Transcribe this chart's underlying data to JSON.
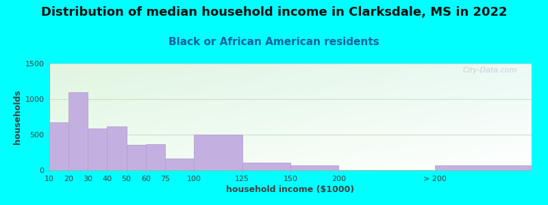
{
  "title": "Distribution of median household income in Clarksdale, MS in 2022",
  "subtitle": "Black or African American residents",
  "xlabel": "household income ($1000)",
  "ylabel": "households",
  "background_outer": "#00FFFF",
  "bar_color": "#C4B0E0",
  "bar_edge_color": "#B0A0D0",
  "watermark": "City-Data.com",
  "bin_edges": [
    0,
    10,
    20,
    30,
    40,
    50,
    60,
    75,
    100,
    125,
    150,
    200,
    250
  ],
  "bin_labels": [
    "10",
    "20",
    "30",
    "40",
    "50",
    "60",
    "75",
    "100",
    "125",
    "150",
    "200",
    "> 200"
  ],
  "values": [
    670,
    1100,
    590,
    620,
    360,
    370,
    165,
    500,
    110,
    65,
    0,
    65
  ],
  "ylim": [
    0,
    1500
  ],
  "yticks": [
    0,
    500,
    1000,
    1500
  ],
  "title_fontsize": 13,
  "subtitle_fontsize": 11,
  "axis_label_fontsize": 9,
  "tick_fontsize": 8,
  "plot_bg_color_tl": [
    0.88,
    0.96,
    0.88
  ],
  "plot_bg_color_tr": [
    0.92,
    0.98,
    0.96
  ],
  "plot_bg_color_br": [
    1.0,
    1.0,
    1.0
  ],
  "plot_bg_color_bl": [
    0.94,
    0.99,
    0.94
  ]
}
